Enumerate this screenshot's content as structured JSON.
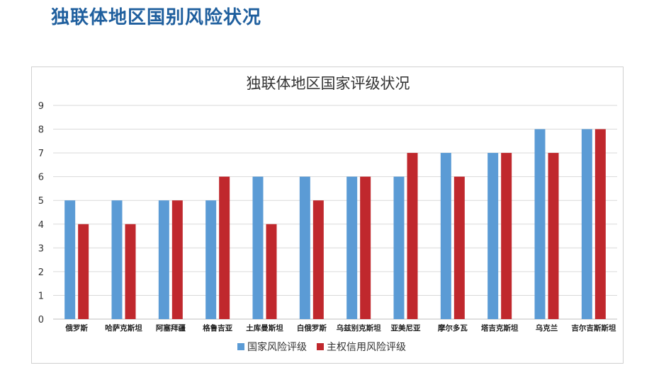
{
  "page": {
    "heading": "独联体地区国别风险状况"
  },
  "colors": {
    "heading": "#1f5f9e",
    "series_1": "#5b9bd5",
    "series_2": "#c0282d",
    "grid": "#d9d9d9"
  },
  "chart_data": {
    "type": "bar",
    "title": "独联体地区国家评级状况",
    "xlabel": "",
    "ylabel": "",
    "ylim": [
      0,
      9
    ],
    "yticks": [
      0,
      1,
      2,
      3,
      4,
      5,
      6,
      7,
      8,
      9
    ],
    "grid": true,
    "legend_position": "bottom",
    "categories": [
      "俄罗斯",
      "哈萨克斯坦",
      "阿塞拜疆",
      "格鲁吉亚",
      "土库曼斯坦",
      "白俄罗斯",
      "乌兹别克斯坦",
      "亚美尼亚",
      "摩尔多瓦",
      "塔吉克斯坦",
      "乌克兰",
      "吉尔吉斯斯坦"
    ],
    "series": [
      {
        "name": "国家风险评级",
        "values": [
          5,
          5,
          5,
          5,
          6,
          6,
          6,
          6,
          7,
          7,
          8,
          8
        ]
      },
      {
        "name": "主权信用风险评级",
        "values": [
          4,
          4,
          5,
          6,
          4,
          5,
          6,
          7,
          6,
          7,
          7,
          8
        ]
      }
    ]
  }
}
